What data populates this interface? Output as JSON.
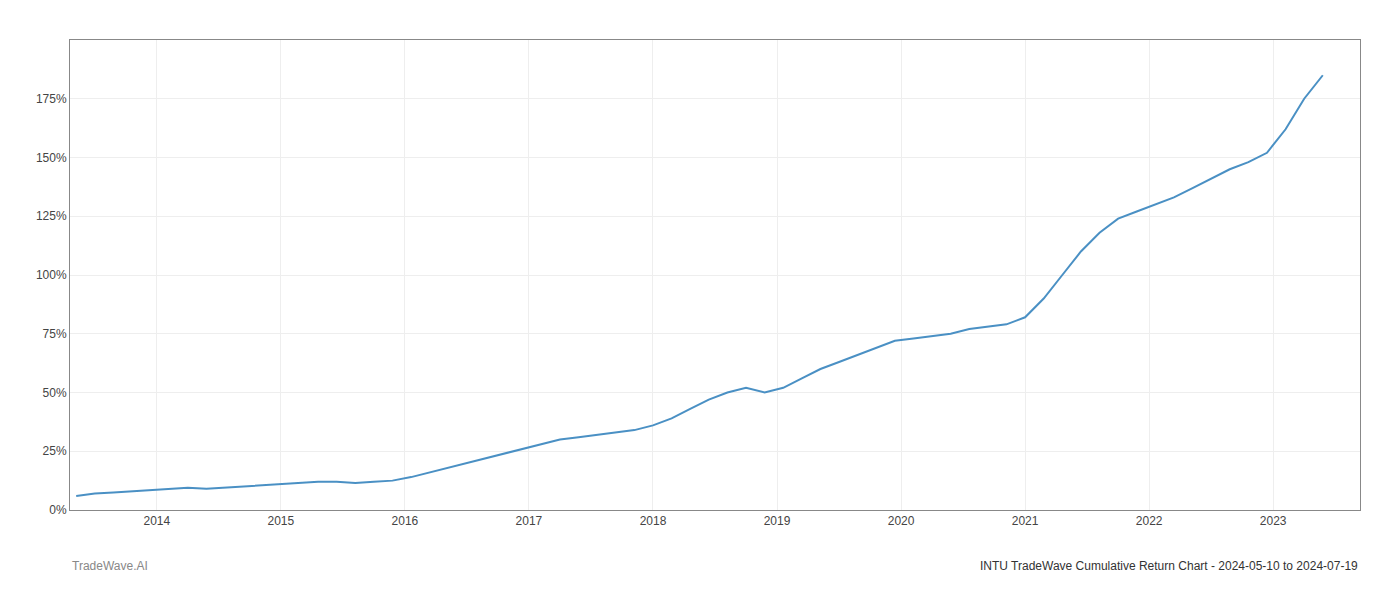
{
  "chart_data": {
    "type": "line",
    "x": [
      2013.35,
      2013.5,
      2013.65,
      2013.8,
      2013.95,
      2014.1,
      2014.25,
      2014.4,
      2014.55,
      2014.7,
      2014.85,
      2015.0,
      2015.15,
      2015.3,
      2015.45,
      2015.6,
      2015.75,
      2015.9,
      2016.05,
      2016.2,
      2016.35,
      2016.5,
      2016.65,
      2016.8,
      2016.95,
      2017.1,
      2017.25,
      2017.4,
      2017.55,
      2017.7,
      2017.85,
      2018.0,
      2018.15,
      2018.3,
      2018.45,
      2018.6,
      2018.75,
      2018.9,
      2019.05,
      2019.2,
      2019.35,
      2019.5,
      2019.65,
      2019.8,
      2019.95,
      2020.1,
      2020.25,
      2020.4,
      2020.55,
      2020.7,
      2020.85,
      2021.0,
      2021.15,
      2021.3,
      2021.45,
      2021.6,
      2021.75,
      2021.9,
      2022.05,
      2022.2,
      2022.35,
      2022.5,
      2022.65,
      2022.8,
      2022.95,
      2023.1,
      2023.25,
      2023.4
    ],
    "values": [
      6,
      7,
      7.5,
      8,
      8.5,
      9,
      9.5,
      9,
      9.5,
      10,
      10.5,
      11,
      11.5,
      12,
      12,
      11.5,
      12,
      12.5,
      14,
      16,
      18,
      20,
      22,
      24,
      26,
      28,
      30,
      31,
      32,
      33,
      34,
      36,
      39,
      43,
      47,
      50,
      52,
      50,
      52,
      56,
      60,
      63,
      66,
      69,
      72,
      73,
      74,
      75,
      77,
      78,
      79,
      82,
      90,
      100,
      110,
      118,
      124,
      127,
      130,
      133,
      137,
      141,
      145,
      148,
      152,
      162,
      175,
      185
    ],
    "color": "#4a90c4",
    "xlim": [
      2013.3,
      2023.7
    ],
    "ylim": [
      0,
      200
    ],
    "xticks": [
      2014,
      2015,
      2016,
      2017,
      2018,
      2019,
      2020,
      2021,
      2022,
      2023
    ],
    "yticks": [
      {
        "value": 0,
        "label": "0%"
      },
      {
        "value": 25,
        "label": "25%"
      },
      {
        "value": 50,
        "label": "50%"
      },
      {
        "value": 75,
        "label": "75%"
      },
      {
        "value": 100,
        "label": "100%"
      },
      {
        "value": 125,
        "label": "125%"
      },
      {
        "value": 150,
        "label": "150%"
      },
      {
        "value": 175,
        "label": "175%"
      }
    ],
    "grid": true,
    "annotations": [
      "TradeWave.AI",
      "INTU TradeWave Cumulative Return Chart - 2024-05-10 to 2024-07-19"
    ]
  }
}
